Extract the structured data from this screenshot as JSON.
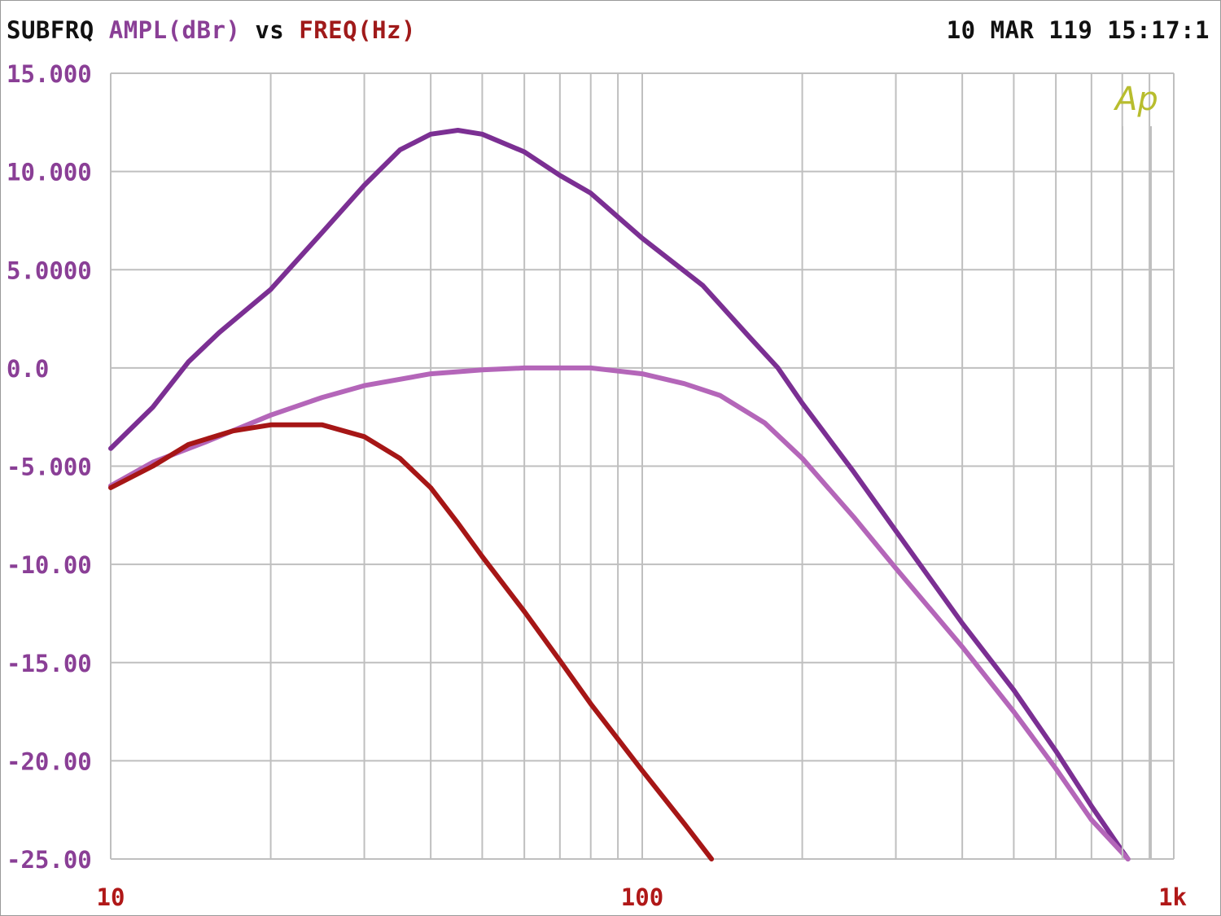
{
  "header": {
    "title": "SUBFRQ",
    "y_name": "AMPL(dBr)",
    "vs": "vs",
    "x_name": "FREQ(Hz)",
    "timestamp": "10 MAR 119 15:17:1"
  },
  "logo_text": "Ap",
  "colors": {
    "y_axis_text": "#8a3f96",
    "x_axis_text": "#b01818",
    "grid": "#bfbfbf",
    "logo": "#b8bd2e"
  },
  "chart_data": {
    "type": "line",
    "title": "SUBFRQ AMPL(dBr) vs FREQ(Hz)",
    "xlabel": "FREQ(Hz)",
    "ylabel": "AMPL(dBr)",
    "x_scale": "log",
    "xlim": [
      10,
      1000
    ],
    "ylim": [
      -25,
      15
    ],
    "grid": true,
    "ytick_values": [
      15,
      10,
      5,
      0,
      -5,
      -10,
      -15,
      -20,
      -25
    ],
    "ytick_labels": [
      "15.000",
      "10.000",
      "5.0000",
      "0.0",
      "-5.000",
      "-10.00",
      "-15.00",
      "-20.00",
      "-25.00"
    ],
    "xtick_values": [
      10,
      100,
      1000
    ],
    "xtick_labels": [
      "10",
      "100",
      "1k"
    ],
    "series": [
      {
        "color": "#7b2f93",
        "points": [
          [
            10,
            -4.1
          ],
          [
            12,
            -2.0
          ],
          [
            14,
            0.3
          ],
          [
            16,
            1.8
          ],
          [
            20,
            4.0
          ],
          [
            25,
            6.9
          ],
          [
            30,
            9.3
          ],
          [
            35,
            11.1
          ],
          [
            40,
            11.9
          ],
          [
            45,
            12.1
          ],
          [
            50,
            11.9
          ],
          [
            60,
            11.0
          ],
          [
            70,
            9.8
          ],
          [
            80,
            8.9
          ],
          [
            100,
            6.6
          ],
          [
            130,
            4.2
          ],
          [
            160,
            1.5
          ],
          [
            180,
            0.0
          ],
          [
            200,
            -1.8
          ],
          [
            250,
            -5.3
          ],
          [
            300,
            -8.3
          ],
          [
            400,
            -13.0
          ],
          [
            500,
            -16.4
          ],
          [
            600,
            -19.5
          ],
          [
            700,
            -22.3
          ],
          [
            800,
            -24.6
          ],
          [
            820,
            -25.0
          ]
        ]
      },
      {
        "color": "#b466b9",
        "points": [
          [
            10,
            -6.0
          ],
          [
            12,
            -4.8
          ],
          [
            15,
            -3.8
          ],
          [
            20,
            -2.4
          ],
          [
            25,
            -1.5
          ],
          [
            30,
            -0.9
          ],
          [
            40,
            -0.3
          ],
          [
            50,
            -0.1
          ],
          [
            60,
            0.0
          ],
          [
            70,
            0.0
          ],
          [
            80,
            0.0
          ],
          [
            100,
            -0.3
          ],
          [
            120,
            -0.8
          ],
          [
            140,
            -1.4
          ],
          [
            170,
            -2.8
          ],
          [
            200,
            -4.6
          ],
          [
            250,
            -7.6
          ],
          [
            300,
            -10.2
          ],
          [
            400,
            -14.2
          ],
          [
            500,
            -17.5
          ],
          [
            600,
            -20.4
          ],
          [
            700,
            -23.0
          ],
          [
            820,
            -25.0
          ]
        ]
      },
      {
        "color": "#a61616",
        "points": [
          [
            10,
            -6.1
          ],
          [
            12,
            -5.0
          ],
          [
            14,
            -3.9
          ],
          [
            17,
            -3.2
          ],
          [
            20,
            -2.9
          ],
          [
            25,
            -2.9
          ],
          [
            30,
            -3.5
          ],
          [
            35,
            -4.6
          ],
          [
            40,
            -6.1
          ],
          [
            45,
            -7.9
          ],
          [
            50,
            -9.6
          ],
          [
            60,
            -12.4
          ],
          [
            70,
            -14.9
          ],
          [
            80,
            -17.1
          ],
          [
            100,
            -20.5
          ],
          [
            120,
            -23.2
          ],
          [
            135,
            -25.0
          ]
        ]
      }
    ]
  }
}
